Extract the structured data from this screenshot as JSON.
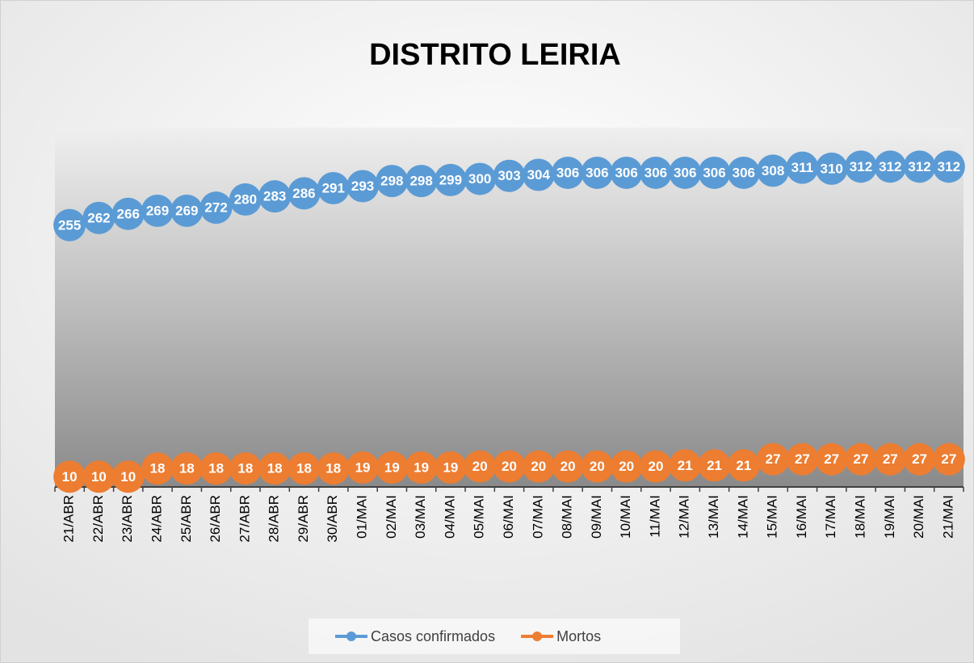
{
  "chart_data": {
    "type": "line",
    "title": "DISTRITO LEIRIA",
    "categories": [
      "21/ABR",
      "22/ABR",
      "23/ABR",
      "24/ABR",
      "25/ABR",
      "26/ABR",
      "27/ABR",
      "28/ABR",
      "29/ABR",
      "30/ABR",
      "01/MAI",
      "02/MAI",
      "03/MAI",
      "04/MAI",
      "05/MAI",
      "06/MAI",
      "07/MAI",
      "08/MAI",
      "09/MAI",
      "10/MAI",
      "11/MAI",
      "12/MAI",
      "13/MAI",
      "14/MAI",
      "15/MAI",
      "16/MAI",
      "17/MAI",
      "18/MAI",
      "19/MAI",
      "20/MAI",
      "21/MAI"
    ],
    "series": [
      {
        "name": "Casos confirmados",
        "color": "#5b9bd5",
        "values": [
          255,
          262,
          266,
          269,
          269,
          272,
          280,
          283,
          286,
          291,
          293,
          298,
          298,
          299,
          300,
          303,
          304,
          306,
          306,
          306,
          306,
          306,
          306,
          306,
          308,
          311,
          310,
          312,
          312,
          312,
          312
        ]
      },
      {
        "name": "Mortos",
        "color": "#ed7d31",
        "values": [
          10,
          10,
          10,
          18,
          18,
          18,
          18,
          18,
          18,
          18,
          19,
          19,
          19,
          19,
          20,
          20,
          20,
          20,
          20,
          20,
          20,
          21,
          21,
          21,
          27,
          27,
          27,
          27,
          27,
          27,
          27
        ]
      }
    ],
    "ylim": [
      0,
      350
    ],
    "grid": false,
    "legend": "bottom"
  }
}
